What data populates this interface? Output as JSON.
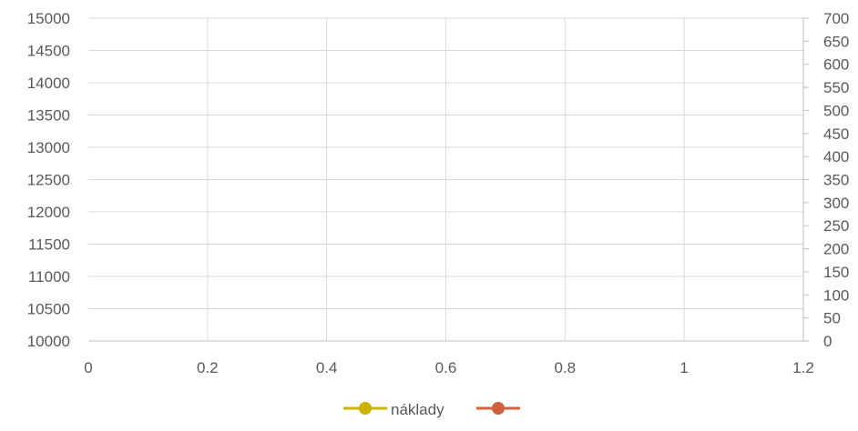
{
  "chart_data": {
    "type": "scatter",
    "x_axis": {
      "min": 0,
      "max": 1.2,
      "ticks": [
        "0",
        "0.2",
        "0.4",
        "0.6",
        "0.8",
        "1",
        "1.2"
      ]
    },
    "y_axis_left": {
      "min": 10000,
      "max": 15000,
      "ticks": [
        "10000",
        "10500",
        "11000",
        "11500",
        "12000",
        "12500",
        "13000",
        "13500",
        "14000",
        "14500",
        "15000"
      ]
    },
    "y_axis_right": {
      "min": 0,
      "max": 700,
      "ticks": [
        "0",
        "50",
        "100",
        "150",
        "200",
        "250",
        "300",
        "350",
        "400",
        "450",
        "500",
        "550",
        "600",
        "650",
        "700"
      ]
    },
    "grid": true,
    "legend_position": "bottom",
    "series": [
      {
        "name": "náklady",
        "axis": "left",
        "color": "#C9B200",
        "points": []
      },
      {
        "name": "",
        "axis": "right",
        "color": "#D06040",
        "points": []
      }
    ]
  }
}
